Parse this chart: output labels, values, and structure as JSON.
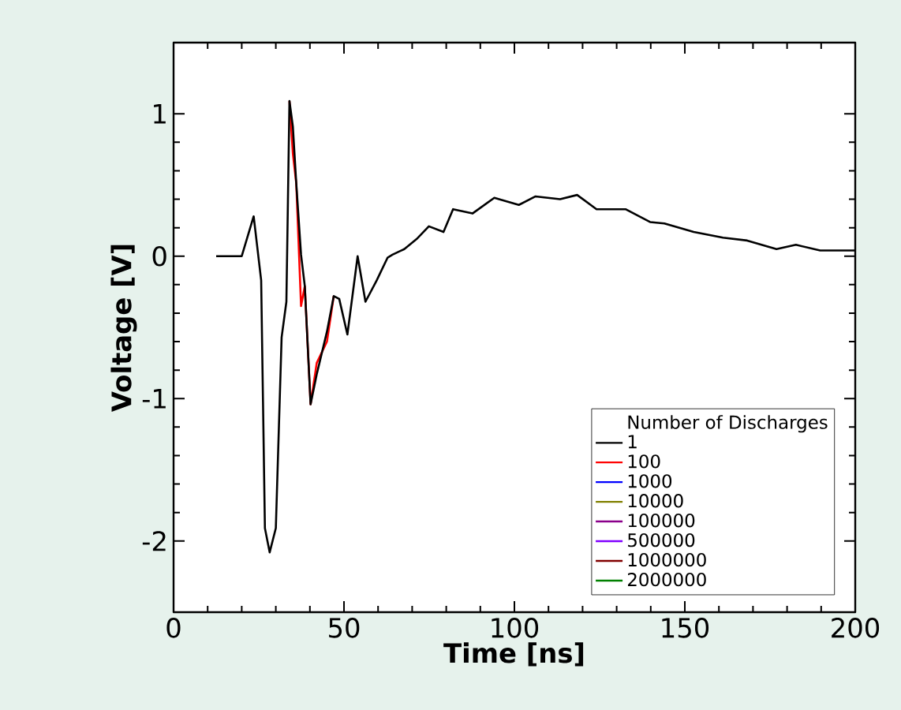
{
  "chart_data": {
    "type": "line",
    "xlabel": "Time [ns]",
    "ylabel": "Voltage [V]",
    "legend_title": "Number of Discharges",
    "x": [
      12.5,
      20,
      23.5,
      25.7,
      26.8,
      28.2,
      30,
      31.7,
      33.1,
      34,
      35,
      36,
      37.4,
      38.5,
      40.2,
      42,
      45,
      47,
      48.6,
      51,
      54,
      56.3,
      59.6,
      62.8,
      64.2,
      67.7,
      71.3,
      74.9,
      79.2,
      82,
      87.7,
      94.1,
      101.3,
      106.2,
      113.4,
      118.4,
      124.1,
      132.6,
      139.8,
      144,
      152.6,
      161.2,
      168.3,
      176.9,
      182.6,
      189.7,
      195.4,
      200
    ],
    "series": [
      {
        "name": "1",
        "color": "#000000",
        "values": [
          0,
          0,
          0.28,
          -0.17,
          -1.91,
          -2.08,
          -1.91,
          -0.57,
          -0.32,
          1.09,
          0.91,
          0.51,
          0.01,
          -0.21,
          -1.04,
          -0.83,
          -0.53,
          -0.28,
          -0.3,
          -0.55,
          0,
          -0.32,
          -0.17,
          -0.01,
          0.01,
          0.05,
          0.12,
          0.21,
          0.17,
          0.33,
          0.3,
          0.41,
          0.36,
          0.42,
          0.4,
          0.43,
          0.33,
          0.33,
          0.24,
          0.23,
          0.17,
          0.13,
          0.11,
          0.05,
          0.08,
          0.04,
          0.04,
          0.04
        ]
      },
      {
        "name": "100",
        "color": "#ff0000",
        "values": [
          null,
          null,
          null,
          null,
          null,
          null,
          null,
          null,
          null,
          1.09,
          0.72,
          0.51,
          -0.35,
          -0.21,
          -1.04,
          -0.75,
          -0.6,
          -0.28,
          null,
          null,
          null,
          null,
          null,
          null,
          null,
          null,
          null,
          null,
          null,
          null,
          null,
          null,
          null,
          null,
          null,
          null,
          null,
          null,
          null,
          null,
          null,
          null,
          null,
          null,
          null,
          null,
          null,
          null
        ]
      },
      {
        "name": "1000",
        "color": "#0000ff",
        "values": [
          null,
          null,
          null,
          null,
          null,
          null,
          null,
          null,
          null,
          null,
          null,
          null,
          null,
          null,
          null,
          null,
          null,
          null,
          null,
          null,
          null,
          null,
          null,
          null,
          null,
          null,
          null,
          null,
          null,
          null,
          null,
          null,
          null,
          null,
          null,
          null,
          null,
          null,
          null,
          null,
          null,
          null,
          null,
          null,
          null,
          null,
          null,
          null
        ]
      },
      {
        "name": "10000",
        "color": "#808000",
        "values": [
          null,
          null,
          null,
          null,
          null,
          null,
          null,
          null,
          null,
          null,
          null,
          null,
          null,
          null,
          null,
          null,
          null,
          null,
          null,
          null,
          null,
          null,
          null,
          null,
          null,
          null,
          null,
          null,
          null,
          null,
          null,
          null,
          null,
          null,
          null,
          null,
          null,
          null,
          null,
          null,
          null,
          null,
          null,
          null,
          null,
          null,
          null,
          null
        ]
      },
      {
        "name": "100000",
        "color": "#8b008b",
        "values": [
          null,
          null,
          null,
          null,
          null,
          null,
          null,
          null,
          null,
          null,
          null,
          null,
          null,
          null,
          null,
          null,
          null,
          null,
          null,
          null,
          null,
          null,
          null,
          null,
          null,
          null,
          null,
          null,
          null,
          null,
          null,
          null,
          null,
          null,
          null,
          null,
          null,
          null,
          null,
          null,
          null,
          null,
          null,
          null,
          null,
          null,
          null,
          null
        ]
      },
      {
        "name": "500000",
        "color": "#8000ff",
        "values": [
          null,
          null,
          null,
          null,
          null,
          null,
          null,
          null,
          null,
          null,
          null,
          null,
          null,
          null,
          null,
          null,
          null,
          null,
          null,
          null,
          null,
          null,
          null,
          null,
          null,
          null,
          null,
          null,
          null,
          null,
          null,
          null,
          null,
          null,
          null,
          null,
          null,
          null,
          null,
          null,
          null,
          null,
          null,
          null,
          null,
          null,
          null,
          null
        ]
      },
      {
        "name": "1000000",
        "color": "#800000",
        "values": [
          null,
          null,
          null,
          null,
          null,
          null,
          null,
          null,
          null,
          null,
          null,
          null,
          null,
          null,
          null,
          null,
          null,
          null,
          null,
          null,
          null,
          null,
          null,
          null,
          null,
          null,
          null,
          null,
          null,
          null,
          null,
          null,
          null,
          null,
          null,
          null,
          null,
          null,
          null,
          null,
          null,
          null,
          null,
          null,
          null,
          null,
          null,
          null
        ]
      },
      {
        "name": "2000000",
        "color": "#008000",
        "values": [
          null,
          null,
          null,
          null,
          null,
          null,
          null,
          null,
          null,
          null,
          null,
          null,
          null,
          null,
          null,
          null,
          null,
          null,
          null,
          null,
          null,
          null,
          null,
          null,
          null,
          null,
          null,
          null,
          null,
          null,
          null,
          null,
          null,
          null,
          null,
          null,
          null,
          null,
          null,
          null,
          null,
          null,
          null,
          null,
          null,
          null,
          null,
          null
        ]
      }
    ],
    "xlim": [
      0,
      200
    ],
    "ylim": [
      -2.5,
      1.5
    ],
    "xticks": [
      0,
      50,
      100,
      150,
      200
    ],
    "yticks": [
      -2,
      -1,
      0,
      1
    ],
    "grid": false,
    "legend": "bottom right",
    "marker": "none",
    "line_style": "solid"
  }
}
